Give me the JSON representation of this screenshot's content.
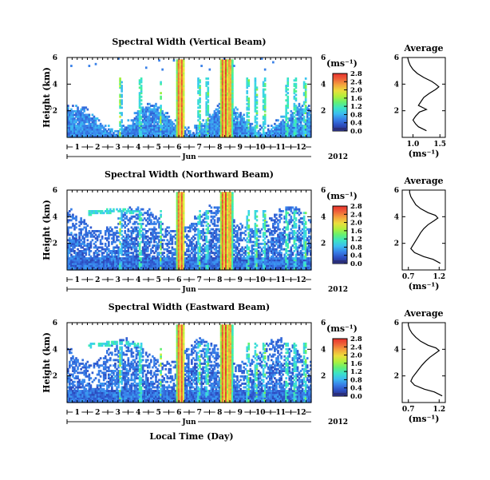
{
  "figure": {
    "xaxis_label": "Local Time (Day)",
    "month_label": "Jun",
    "year_label": "2012",
    "ylabel": "Height (km)",
    "colorbar_unit": "(ms⁻¹)"
  },
  "colorscale": {
    "stops": [
      "#ffffff",
      "#2a2f7a",
      "#2d51c9",
      "#3b8cf0",
      "#3cd2f0",
      "#3cf0a8",
      "#8cf03c",
      "#e6f03c",
      "#f5b43c",
      "#f06a3c",
      "#e8322c"
    ],
    "ticks": [
      "0.0",
      "0.4",
      "0.8",
      "1.2",
      "1.6",
      "2.0",
      "2.4",
      "2.8"
    ]
  },
  "chart_data": [
    {
      "type": "heatmap",
      "title": "Spectral Width (Vertical Beam)",
      "ylabel": "Height (km)",
      "yticks": [
        "2",
        "4",
        "6"
      ],
      "ylim": [
        0,
        6
      ],
      "xlim": [
        0.5,
        12.5
      ],
      "xticks": [
        "1",
        "2",
        "3",
        "4",
        "5",
        "6",
        "7",
        "8",
        "9",
        "10",
        "11",
        "12"
      ],
      "xlabel_month": "Jun",
      "year": "2012",
      "colorbar": {
        "unit": "(ms⁻¹)",
        "range": [
          0.0,
          2.8
        ],
        "ticks": [
          "0.0",
          "0.4",
          "0.8",
          "1.2",
          "1.6",
          "2.0",
          "2.4",
          "2.8"
        ]
      },
      "profile": {
        "title": "Average",
        "xlabel": "(ms⁻¹)",
        "xticks": [
          "1.0",
          "1.5"
        ],
        "xlim": [
          0.8,
          1.6
        ],
        "yticks": [
          "2",
          "4",
          "6"
        ],
        "heights": [
          0.5,
          0.8,
          1.0,
          1.3,
          1.6,
          1.9,
          2.1,
          2.4,
          2.7,
          3.0,
          3.3,
          3.6,
          3.8,
          4.0,
          4.2,
          4.5,
          4.8,
          5.1,
          5.4,
          5.7,
          6.0
        ],
        "values": [
          1.25,
          1.1,
          1.05,
          1.0,
          1.05,
          1.12,
          1.25,
          1.1,
          1.15,
          1.2,
          1.3,
          1.42,
          1.48,
          1.42,
          1.35,
          1.2,
          1.08,
          1.0,
          0.95,
          0.92,
          0.9
        ]
      }
    },
    {
      "type": "heatmap",
      "title": "Spectral Width (Northward Beam)",
      "ylabel": "Height (km)",
      "yticks": [
        "2",
        "4",
        "6"
      ],
      "ylim": [
        0,
        6
      ],
      "xlim": [
        0.5,
        12.5
      ],
      "xticks": [
        "1",
        "2",
        "3",
        "4",
        "5",
        "6",
        "7",
        "8",
        "9",
        "10",
        "11",
        "12"
      ],
      "xlabel_month": "Jun",
      "year": "2012",
      "colorbar": {
        "unit": "(ms⁻¹)",
        "range": [
          0.0,
          2.8
        ],
        "ticks": [
          "0.0",
          "0.4",
          "0.8",
          "1.2",
          "1.6",
          "2.0",
          "2.4",
          "2.8"
        ]
      },
      "profile": {
        "title": "Average",
        "xlabel": "(ms⁻¹)",
        "xticks": [
          "0.7",
          "1.2"
        ],
        "xlim": [
          0.6,
          1.3
        ],
        "yticks": [
          "2",
          "4",
          "6"
        ],
        "heights": [
          0.5,
          0.8,
          1.0,
          1.3,
          1.6,
          1.9,
          2.2,
          2.5,
          2.8,
          3.1,
          3.4,
          3.7,
          3.9,
          4.1,
          4.3,
          4.6,
          4.9,
          5.2,
          5.5,
          5.8,
          6.0
        ],
        "values": [
          1.22,
          1.1,
          0.95,
          0.8,
          0.74,
          0.78,
          0.82,
          0.86,
          0.9,
          0.95,
          1.02,
          1.12,
          1.18,
          1.14,
          1.02,
          0.9,
          0.82,
          0.78,
          0.74,
          0.72,
          0.72
        ]
      }
    },
    {
      "type": "heatmap",
      "title": "Spectral Width (Eastward Beam)",
      "ylabel": "Height (km)",
      "yticks": [
        "2",
        "4",
        "6"
      ],
      "ylim": [
        0,
        6
      ],
      "xlim": [
        0.5,
        12.5
      ],
      "xticks": [
        "1",
        "2",
        "3",
        "4",
        "5",
        "6",
        "7",
        "8",
        "9",
        "10",
        "11",
        "12"
      ],
      "xlabel_month": "Jun",
      "year": "2012",
      "colorbar": {
        "unit": "(ms⁻¹)",
        "range": [
          0.0,
          2.8
        ],
        "ticks": [
          "0.0",
          "0.4",
          "0.8",
          "1.2",
          "1.6",
          "2.0",
          "2.4",
          "2.8"
        ]
      },
      "profile": {
        "title": "Average",
        "xlabel": "(ms⁻¹)",
        "xticks": [
          "0.7",
          "1.2"
        ],
        "xlim": [
          0.6,
          1.3
        ],
        "yticks": [
          "2",
          "4",
          "6"
        ],
        "heights": [
          0.5,
          0.8,
          1.0,
          1.3,
          1.6,
          1.9,
          2.2,
          2.5,
          2.8,
          3.1,
          3.4,
          3.7,
          3.9,
          4.1,
          4.3,
          4.6,
          4.9,
          5.2,
          5.5,
          5.8,
          6.0
        ],
        "values": [
          1.25,
          1.12,
          0.96,
          0.8,
          0.74,
          0.77,
          0.82,
          0.87,
          0.92,
          0.98,
          1.05,
          1.14,
          1.2,
          1.15,
          1.02,
          0.9,
          0.82,
          0.76,
          0.72,
          0.7,
          0.7
        ]
      }
    }
  ]
}
